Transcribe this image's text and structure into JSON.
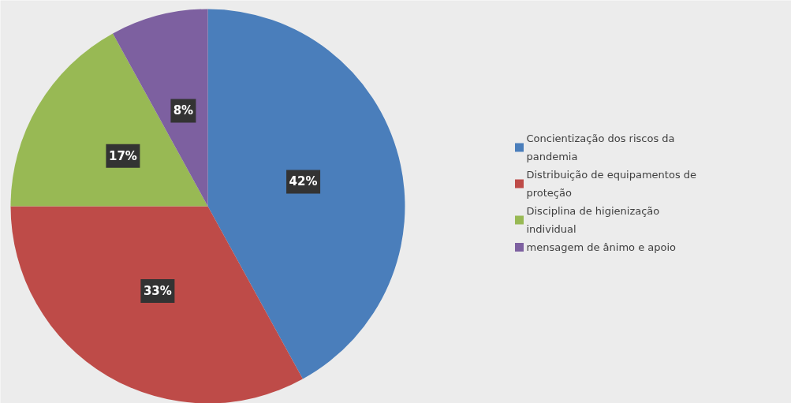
{
  "chart_data": {
    "type": "pie",
    "categories": [
      "Concientização dos riscos da pandemia",
      "Distribuição de equipamentos de proteção",
      "Disciplina de higienização individual",
      "mensagem de ânimo e apoio"
    ],
    "values": [
      42,
      33,
      17,
      8
    ],
    "colors": [
      "#4a7ebb",
      "#be4b48",
      "#98b954",
      "#7d60a0"
    ],
    "value_labels": [
      "42%",
      "33%",
      "17%",
      "8%"
    ],
    "legend": "right"
  }
}
